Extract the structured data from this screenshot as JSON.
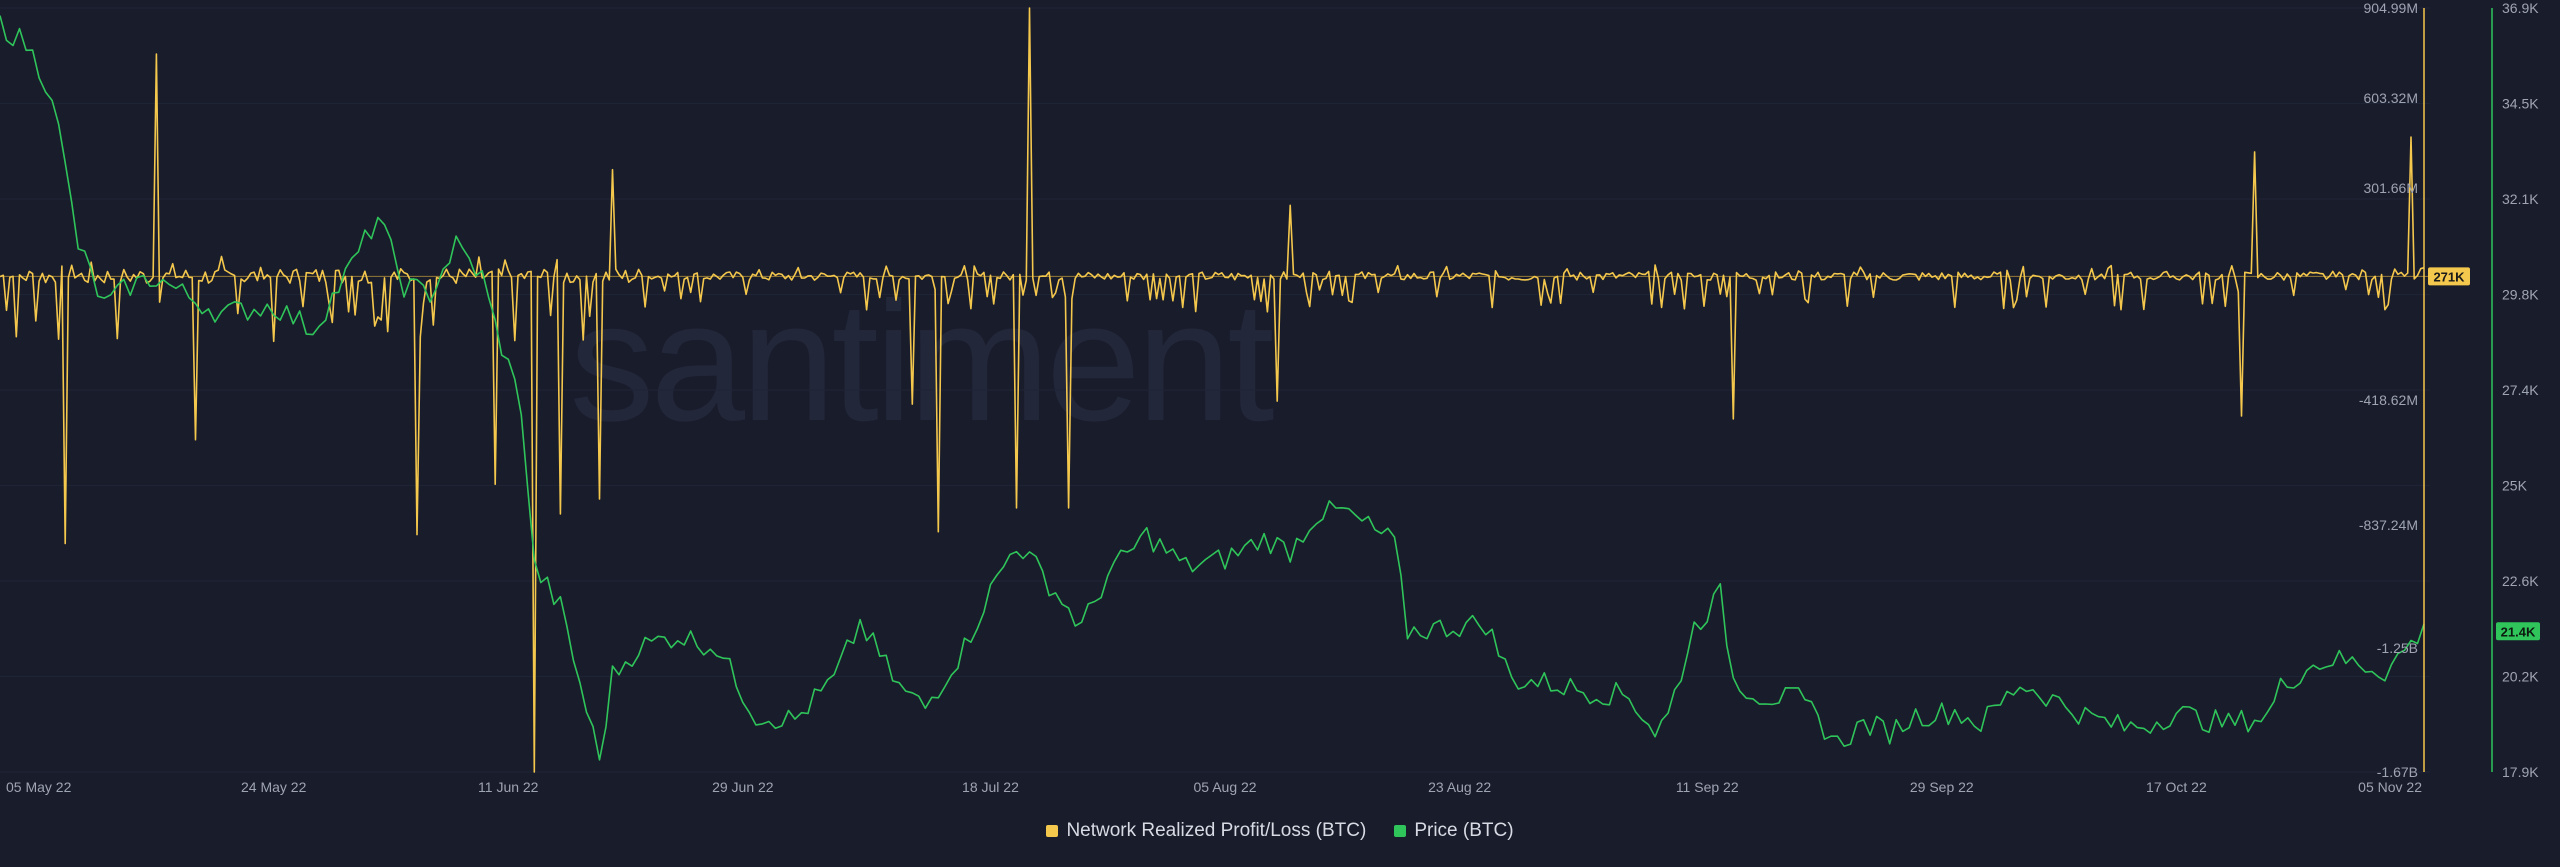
{
  "chart_data": {
    "type": "line",
    "watermark": "santiment",
    "x_ticks": [
      "05 May 22",
      "24 May 22",
      "11 Jun 22",
      "29 Jun 22",
      "18 Jul 22",
      "05 Aug 22",
      "23 Aug 22",
      "11 Sep 22",
      "29 Sep 22",
      "17 Oct 22",
      "05 Nov 22"
    ],
    "xlim": [
      "2022-05-03",
      "2022-11-05"
    ],
    "series": [
      {
        "name": "Network Realized Profit/Loss (BTC)",
        "color": "#f4c74d",
        "axis": "left",
        "ylim": [
          -1670000000,
          904990000
        ],
        "ticks": [
          "904.99M",
          "603.32M",
          "301.66M",
          "-418.62M",
          "-837.24M",
          "-1.25B",
          "-1.67B"
        ],
        "current_label": "271K",
        "spikes": [
          {
            "date": "2022-05-08",
            "value": -900000000
          },
          {
            "date": "2022-05-15",
            "value": 750000000
          },
          {
            "date": "2022-05-18",
            "value": -550000000
          },
          {
            "date": "2022-06-04",
            "value": -870000000
          },
          {
            "date": "2022-06-10",
            "value": -700000000
          },
          {
            "date": "2022-06-13",
            "value": -1670000000
          },
          {
            "date": "2022-06-15",
            "value": -800000000
          },
          {
            "date": "2022-06-18",
            "value": -750000000
          },
          {
            "date": "2022-06-19",
            "value": 360000000
          },
          {
            "date": "2022-07-12",
            "value": -430000000
          },
          {
            "date": "2022-07-14",
            "value": -860000000
          },
          {
            "date": "2022-07-20",
            "value": -780000000
          },
          {
            "date": "2022-07-21",
            "value": 904990000
          },
          {
            "date": "2022-07-24",
            "value": -780000000
          },
          {
            "date": "2022-08-09",
            "value": -420000000
          },
          {
            "date": "2022-08-10",
            "value": 240000000
          },
          {
            "date": "2022-09-13",
            "value": -480000000
          },
          {
            "date": "2022-10-22",
            "value": -470000000
          },
          {
            "date": "2022-10-23",
            "value": 420000000
          },
          {
            "date": "2022-11-04",
            "value": 470000000
          }
        ]
      },
      {
        "name": "Price (BTC)",
        "color": "#2fc55a",
        "axis": "right",
        "ylim": [
          17900,
          36900
        ],
        "ticks": [
          "36.9K",
          "34.5K",
          "32.1K",
          "29.8K",
          "27.4K",
          "25K",
          "22.6K",
          "20.2K",
          "17.9K"
        ],
        "current_label": "21.4K",
        "points": [
          [
            "2022-05-03",
            36500
          ],
          [
            "2022-05-05",
            36000
          ],
          [
            "2022-05-07",
            34800
          ],
          [
            "2022-05-09",
            31000
          ],
          [
            "2022-05-11",
            29500
          ],
          [
            "2022-05-13",
            30000
          ],
          [
            "2022-05-15",
            30200
          ],
          [
            "2022-05-17",
            29800
          ],
          [
            "2022-05-20",
            29300
          ],
          [
            "2022-05-24",
            29500
          ],
          [
            "2022-05-27",
            28900
          ],
          [
            "2022-05-30",
            30500
          ],
          [
            "2022-06-01",
            31700
          ],
          [
            "2022-06-03",
            30000
          ],
          [
            "2022-06-05",
            29800
          ],
          [
            "2022-06-07",
            31000
          ],
          [
            "2022-06-09",
            30200
          ],
          [
            "2022-06-10",
            29000
          ],
          [
            "2022-06-12",
            27000
          ],
          [
            "2022-06-13",
            23000
          ],
          [
            "2022-06-15",
            22000
          ],
          [
            "2022-06-18",
            18200
          ],
          [
            "2022-06-19",
            20300
          ],
          [
            "2022-06-21",
            21000
          ],
          [
            "2022-06-24",
            21300
          ],
          [
            "2022-06-27",
            21000
          ],
          [
            "2022-06-30",
            19300
          ],
          [
            "2022-07-03",
            19200
          ],
          [
            "2022-07-06",
            20200
          ],
          [
            "2022-07-08",
            21600
          ],
          [
            "2022-07-11",
            20000
          ],
          [
            "2022-07-13",
            19500
          ],
          [
            "2022-07-16",
            21000
          ],
          [
            "2022-07-18",
            22400
          ],
          [
            "2022-07-20",
            23600
          ],
          [
            "2022-07-22",
            22800
          ],
          [
            "2022-07-25",
            21500
          ],
          [
            "2022-07-27",
            22800
          ],
          [
            "2022-07-30",
            23800
          ],
          [
            "2022-08-02",
            23000
          ],
          [
            "2022-08-05",
            23200
          ],
          [
            "2022-08-08",
            23700
          ],
          [
            "2022-08-10",
            23400
          ],
          [
            "2022-08-12",
            24300
          ],
          [
            "2022-08-14",
            24400
          ],
          [
            "2022-08-16",
            24000
          ],
          [
            "2022-08-18",
            23600
          ],
          [
            "2022-08-19",
            21400
          ],
          [
            "2022-08-22",
            21500
          ],
          [
            "2022-08-25",
            21600
          ],
          [
            "2022-08-27",
            20200
          ],
          [
            "2022-08-30",
            20100
          ],
          [
            "2022-09-02",
            19900
          ],
          [
            "2022-09-05",
            19800
          ],
          [
            "2022-09-07",
            18900
          ],
          [
            "2022-09-08",
            19300
          ],
          [
            "2022-09-10",
            21500
          ],
          [
            "2022-09-12",
            22300
          ],
          [
            "2022-09-13",
            20200
          ],
          [
            "2022-09-15",
            19800
          ],
          [
            "2022-09-18",
            19700
          ],
          [
            "2022-09-19",
            19400
          ],
          [
            "2022-09-21",
            18600
          ],
          [
            "2022-09-23",
            19100
          ],
          [
            "2022-09-25",
            18900
          ],
          [
            "2022-09-27",
            19300
          ],
          [
            "2022-09-30",
            19400
          ],
          [
            "2022-10-02",
            19100
          ],
          [
            "2022-10-05",
            20100
          ],
          [
            "2022-10-07",
            19800
          ],
          [
            "2022-10-10",
            19300
          ],
          [
            "2022-10-13",
            19000
          ],
          [
            "2022-10-15",
            19100
          ],
          [
            "2022-10-17",
            19400
          ],
          [
            "2022-10-19",
            19200
          ],
          [
            "2022-10-21",
            19100
          ],
          [
            "2022-10-24",
            19300
          ],
          [
            "2022-10-25",
            20000
          ],
          [
            "2022-10-27",
            20500
          ],
          [
            "2022-10-29",
            20700
          ],
          [
            "2022-10-31",
            20600
          ],
          [
            "2022-11-02",
            20400
          ],
          [
            "2022-11-04",
            21100
          ],
          [
            "2022-11-05",
            21400
          ]
        ]
      }
    ]
  }
}
